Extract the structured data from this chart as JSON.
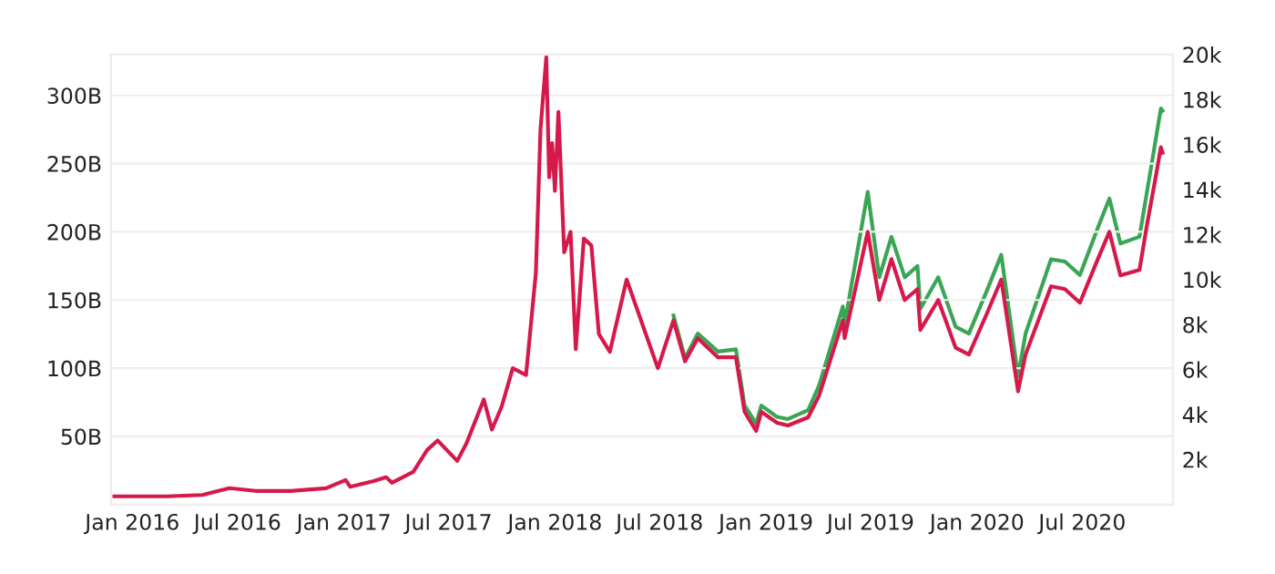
{
  "chart_data": {
    "type": "line",
    "xlim": [
      "2015-11-25",
      "2020-12-05"
    ],
    "xticks": [
      {
        "value": "2016-01-01",
        "label": "Jan 2016"
      },
      {
        "value": "2016-07-01",
        "label": "Jul 2016"
      },
      {
        "value": "2017-01-01",
        "label": "Jan 2017"
      },
      {
        "value": "2017-07-01",
        "label": "Jul 2017"
      },
      {
        "value": "2018-01-01",
        "label": "Jan 2018"
      },
      {
        "value": "2018-07-01",
        "label": "Jul 2018"
      },
      {
        "value": "2019-01-01",
        "label": "Jan 2019"
      },
      {
        "value": "2019-07-01",
        "label": "Jul 2019"
      },
      {
        "value": "2020-01-01",
        "label": "Jan 2020"
      },
      {
        "value": "2020-07-01",
        "label": "Jul 2020"
      }
    ],
    "ylim": [
      0,
      330
    ],
    "yticks": [
      {
        "value": 50,
        "label": "50B"
      },
      {
        "value": 100,
        "label": "100B"
      },
      {
        "value": 150,
        "label": "150B"
      },
      {
        "value": 200,
        "label": "200B"
      },
      {
        "value": 250,
        "label": "250B"
      },
      {
        "value": 300,
        "label": "300B"
      }
    ],
    "y2lim": [
      0,
      20000
    ],
    "y2ticks": [
      {
        "value": 2000,
        "label": "2k"
      },
      {
        "value": 4000,
        "label": "4k"
      },
      {
        "value": 6000,
        "label": "6k"
      },
      {
        "value": 8000,
        "label": "8k"
      },
      {
        "value": 10000,
        "label": "10k"
      },
      {
        "value": 12000,
        "label": "12k"
      },
      {
        "value": 14000,
        "label": "14k"
      },
      {
        "value": 16000,
        "label": "16k"
      },
      {
        "value": 18000,
        "label": "18k"
      },
      {
        "value": 20000,
        "label": "20k"
      }
    ],
    "grid": "y",
    "legend": false,
    "line_style": "solid",
    "x": [
      "2015-12-01",
      "2016-01-15",
      "2016-03-01",
      "2016-05-01",
      "2016-06-17",
      "2016-08-01",
      "2016-10-01",
      "2016-12-01",
      "2017-01-04",
      "2017-01-12",
      "2017-02-20",
      "2017-03-15",
      "2017-03-25",
      "2017-05-01",
      "2017-05-25",
      "2017-06-12",
      "2017-07-16",
      "2017-08-01",
      "2017-08-31",
      "2017-09-14",
      "2017-10-01",
      "2017-10-20",
      "2017-11-12",
      "2017-11-29",
      "2017-12-07",
      "2017-12-17",
      "2017-12-22",
      "2017-12-27",
      "2018-01-01",
      "2018-01-07",
      "2018-01-17",
      "2018-01-28",
      "2018-02-06",
      "2018-02-20",
      "2018-03-05",
      "2018-03-18",
      "2018-04-06",
      "2018-05-05",
      "2018-06-28",
      "2018-07-25",
      "2018-08-14",
      "2018-09-05",
      "2018-10-10",
      "2018-11-10",
      "2018-11-25",
      "2018-12-15",
      "2018-12-24",
      "2019-01-20",
      "2019-02-08",
      "2019-03-15",
      "2019-04-03",
      "2019-05-14",
      "2019-05-17",
      "2019-06-26",
      "2019-07-16",
      "2019-08-06",
      "2019-08-29",
      "2019-09-20",
      "2019-09-25",
      "2019-10-26",
      "2019-11-25",
      "2019-12-18",
      "2020-01-18",
      "2020-02-12",
      "2020-03-12",
      "2020-03-25",
      "2020-05-08",
      "2020-06-01",
      "2020-06-27",
      "2020-07-28",
      "2020-08-17",
      "2020-09-05",
      "2020-10-08",
      "2020-10-21",
      "2020-11-05",
      "2020-11-14",
      "2020-11-17"
    ],
    "series": [
      {
        "color": "#3aa655",
        "axis": "y2",
        "values": [
          null,
          null,
          null,
          null,
          null,
          null,
          null,
          null,
          null,
          null,
          null,
          null,
          null,
          null,
          null,
          null,
          null,
          null,
          null,
          null,
          null,
          null,
          null,
          null,
          null,
          null,
          null,
          null,
          null,
          null,
          null,
          null,
          null,
          null,
          null,
          null,
          null,
          null,
          null,
          8400,
          6500,
          7600,
          6800,
          6900,
          4400,
          3600,
          4400,
          3900,
          3800,
          4200,
          5300,
          8800,
          8000,
          13900,
          10100,
          11900,
          10100,
          10600,
          8700,
          10100,
          7900,
          7600,
          9500,
          11100,
          5700,
          7600,
          10900,
          10800,
          10200,
          12300,
          13600,
          11600,
          11900,
          13900,
          16200,
          17600,
          17500
        ]
      },
      {
        "color": "#d6194b",
        "axis": "y",
        "values": [
          6,
          6,
          6,
          7,
          12,
          10,
          10,
          12,
          18,
          13,
          17,
          20,
          16,
          24,
          40,
          47,
          32,
          45,
          77,
          55,
          72,
          100,
          95,
          170,
          275,
          328,
          240,
          265,
          230,
          288,
          185,
          200,
          114,
          195,
          190,
          125,
          112,
          165,
          100,
          135,
          105,
          122,
          108,
          108,
          68,
          54,
          68,
          60,
          58,
          64,
          80,
          135,
          122,
          200,
          150,
          180,
          150,
          158,
          128,
          150,
          115,
          110,
          140,
          165,
          83,
          110,
          160,
          158,
          148,
          180,
          200,
          168,
          172,
          205,
          240,
          262,
          258
        ]
      }
    ]
  }
}
